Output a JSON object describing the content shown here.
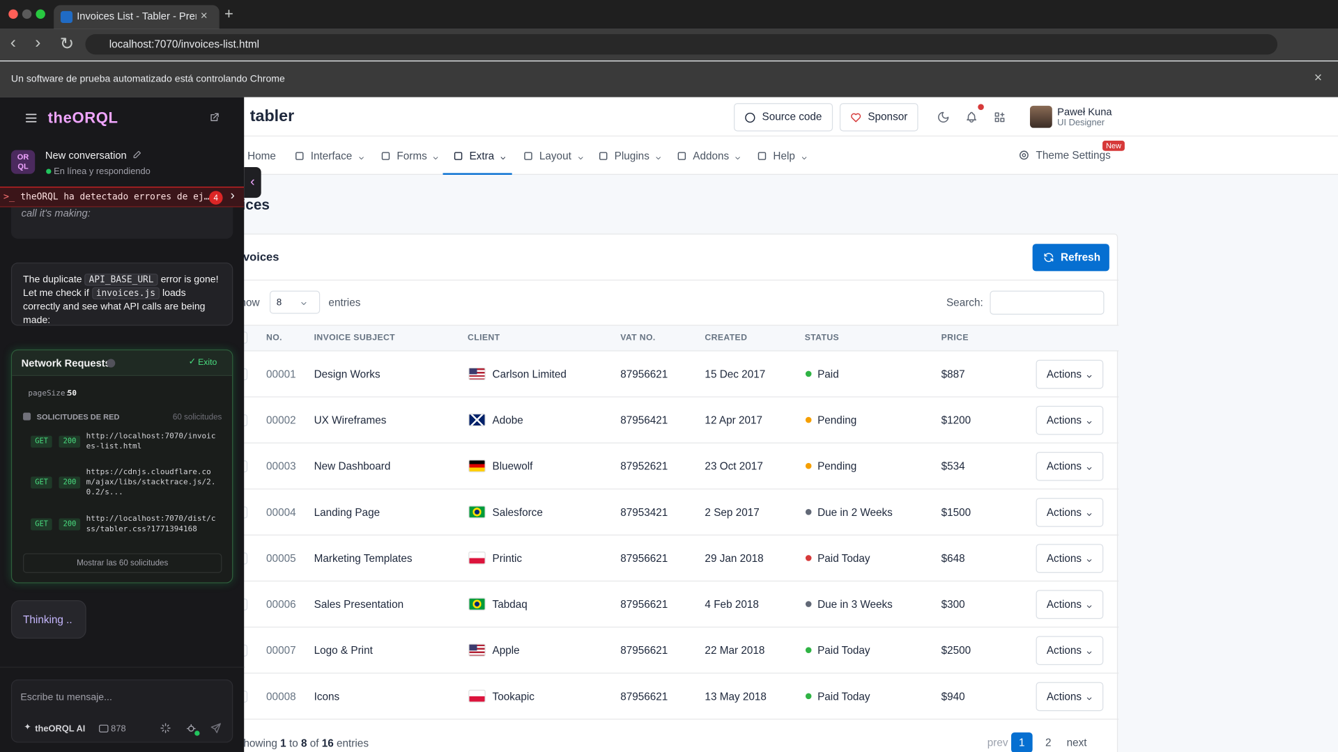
{
  "browser": {
    "tab_title": "Invoices List - Tabler - Premi",
    "url": "localhost:7070/invoices-list.html",
    "automation_banner": "Un software de prueba automatizado está controlando Chrome"
  },
  "sidebar": {
    "brand": "theORQL",
    "avatar": "OR QL",
    "conversation_title": "New conversation",
    "status": "En línea y respondiendo",
    "error_banner": "theORQL ha detectado errores de ej…",
    "error_count": "4",
    "partial_message": "call it's making:",
    "message": [
      {
        "text": "The duplicate "
      },
      {
        "code": "API_BASE_URL"
      },
      {
        "text": " error is gone! Let me check if "
      },
      {
        "code": "invoices.js"
      },
      {
        "text": " loads correctly and see what API calls are being made:"
      }
    ],
    "network": {
      "title": "Network Requests",
      "status": "Exito",
      "page_size_label": "pageSize:",
      "page_size": "50",
      "section": "SOLICITUDES DE RED",
      "count": "60 solicitudes",
      "requests": [
        {
          "method": "GET",
          "code": "200",
          "url": "http://localhost:7070/invoices-list.html"
        },
        {
          "method": "GET",
          "code": "200",
          "url": "https://cdnjs.cloudflare.com/ajax/libs/stacktrace.js/2.0.2/s..."
        },
        {
          "method": "GET",
          "code": "200",
          "url": "http://localhost:7070/dist/css/tabler.css?1771394168"
        }
      ],
      "show_all": "Mostrar las 60 solicitudes"
    },
    "thinking": "Thinking ..",
    "input_placeholder": "Escribe tu mensaje...",
    "model": "theORQL AI",
    "counter": "878"
  },
  "header": {
    "logo": "tabler",
    "buttons": [
      "Source code",
      "Sponsor"
    ],
    "user_name": "Paweł Kuna",
    "user_role": "UI Designer"
  },
  "nav": {
    "items": [
      "Home",
      "Interface",
      "Forms",
      "Extra",
      "Layout",
      "Plugins",
      "Addons",
      "Help"
    ],
    "active": "Extra",
    "theme_settings": "Theme Settings",
    "badge": "New"
  },
  "page": {
    "title": "Invoices",
    "card_title": "Invoices",
    "refresh": "Refresh",
    "show": "Show",
    "entries_select": "8",
    "entries": "entries",
    "search": "Search:"
  },
  "table": {
    "columns": [
      "NO.",
      "INVOICE SUBJECT",
      "CLIENT",
      "VAT NO.",
      "CREATED",
      "STATUS",
      "PRICE"
    ],
    "action": "Actions",
    "rows": [
      {
        "no": "00001",
        "subject": "Design Works",
        "client": "Carlson Limited",
        "flag": "us",
        "vat": "87956621",
        "created": "15 Dec 2017",
        "status": "Paid",
        "status_color": "#2fb344",
        "price": "$887"
      },
      {
        "no": "00002",
        "subject": "UX Wireframes",
        "client": "Adobe",
        "flag": "gb",
        "vat": "87956421",
        "created": "12 Apr 2017",
        "status": "Pending",
        "status_color": "#f59f00",
        "price": "$1200"
      },
      {
        "no": "00003",
        "subject": "New Dashboard",
        "client": "Bluewolf",
        "flag": "de",
        "vat": "87952621",
        "created": "23 Oct 2017",
        "status": "Pending",
        "status_color": "#f59f00",
        "price": "$534"
      },
      {
        "no": "00004",
        "subject": "Landing Page",
        "client": "Salesforce",
        "flag": "br",
        "vat": "87953421",
        "created": "2 Sep 2017",
        "status": "Due in 2 Weeks",
        "status_color": "#616876",
        "price": "$1500"
      },
      {
        "no": "00005",
        "subject": "Marketing Templates",
        "client": "Printic",
        "flag": "pl",
        "vat": "87956621",
        "created": "29 Jan 2018",
        "status": "Paid Today",
        "status_color": "#d63939",
        "price": "$648"
      },
      {
        "no": "00006",
        "subject": "Sales Presentation",
        "client": "Tabdaq",
        "flag": "br",
        "vat": "87956621",
        "created": "4 Feb 2018",
        "status": "Due in 3 Weeks",
        "status_color": "#616876",
        "price": "$300"
      },
      {
        "no": "00007",
        "subject": "Logo & Print",
        "client": "Apple",
        "flag": "us",
        "vat": "87956621",
        "created": "22 Mar 2018",
        "status": "Paid Today",
        "status_color": "#2fb344",
        "price": "$2500"
      },
      {
        "no": "00008",
        "subject": "Icons",
        "client": "Tookapic",
        "flag": "pl",
        "vat": "87956621",
        "created": "13 May 2018",
        "status": "Paid Today",
        "status_color": "#2fb344",
        "price": "$940"
      }
    ]
  },
  "footer": {
    "summary": [
      "Showing ",
      "1",
      " to ",
      "8",
      " of ",
      "16",
      " entries"
    ],
    "pagination": [
      "prev",
      "1",
      "2",
      "next"
    ]
  }
}
